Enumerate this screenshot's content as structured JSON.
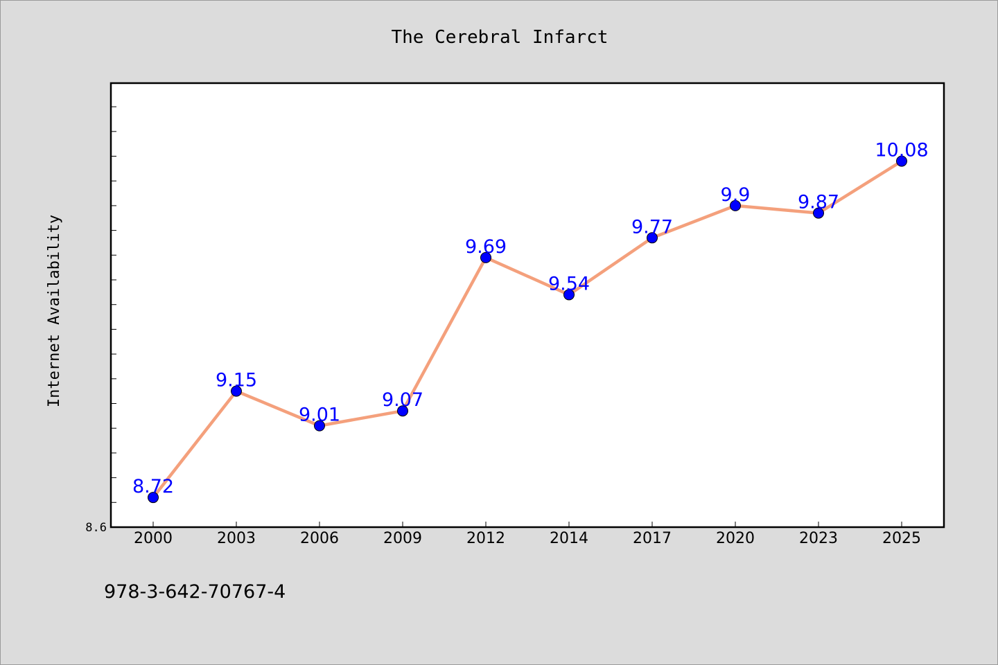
{
  "chart_data": {
    "type": "line",
    "title": "The Cerebral Infarct",
    "xlabel": "",
    "ylabel": "Internet Availability",
    "categories": [
      "2000",
      "2003",
      "2006",
      "2009",
      "2012",
      "2014",
      "2017",
      "2020",
      "2023",
      "2025"
    ],
    "series": [
      {
        "values": [
          8.72,
          9.15,
          9.01,
          9.07,
          9.69,
          9.54,
          9.77,
          9.9,
          9.87,
          10.08
        ]
      }
    ],
    "data_labels": [
      "8.72",
      "9.15",
      "9.01",
      "9.07",
      "9.69",
      "9.54",
      "9.77",
      "9.9",
      "9.87",
      "10.08"
    ],
    "yticks_labeled": [
      "8.6"
    ],
    "ylim": [
      8.6,
      10.4
    ],
    "grid": false,
    "legend": "none"
  },
  "footer": {
    "isbn": "978-3-642-70767-4"
  },
  "colors": {
    "background": "#dcdcdc",
    "plot_background": "#ffffff",
    "line": "#f4a07c",
    "marker": "#0000ff",
    "data_label": "#0000ff"
  }
}
